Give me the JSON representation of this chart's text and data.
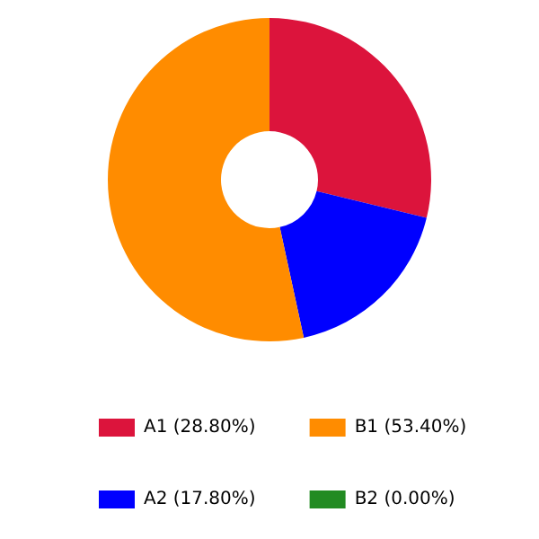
{
  "chart_data": {
    "type": "donut",
    "categories": [
      "A1 (28.80%)",
      "A2 (17.80%)",
      "B1 (53.40%)",
      "B2 (0.00%)"
    ],
    "values": [
      28.8,
      17.8,
      53.4,
      0
    ],
    "colors": [
      "#dc143c",
      "#0000ff",
      "#ff8c00",
      "#228b22"
    ],
    "legend": "bottom"
  }
}
